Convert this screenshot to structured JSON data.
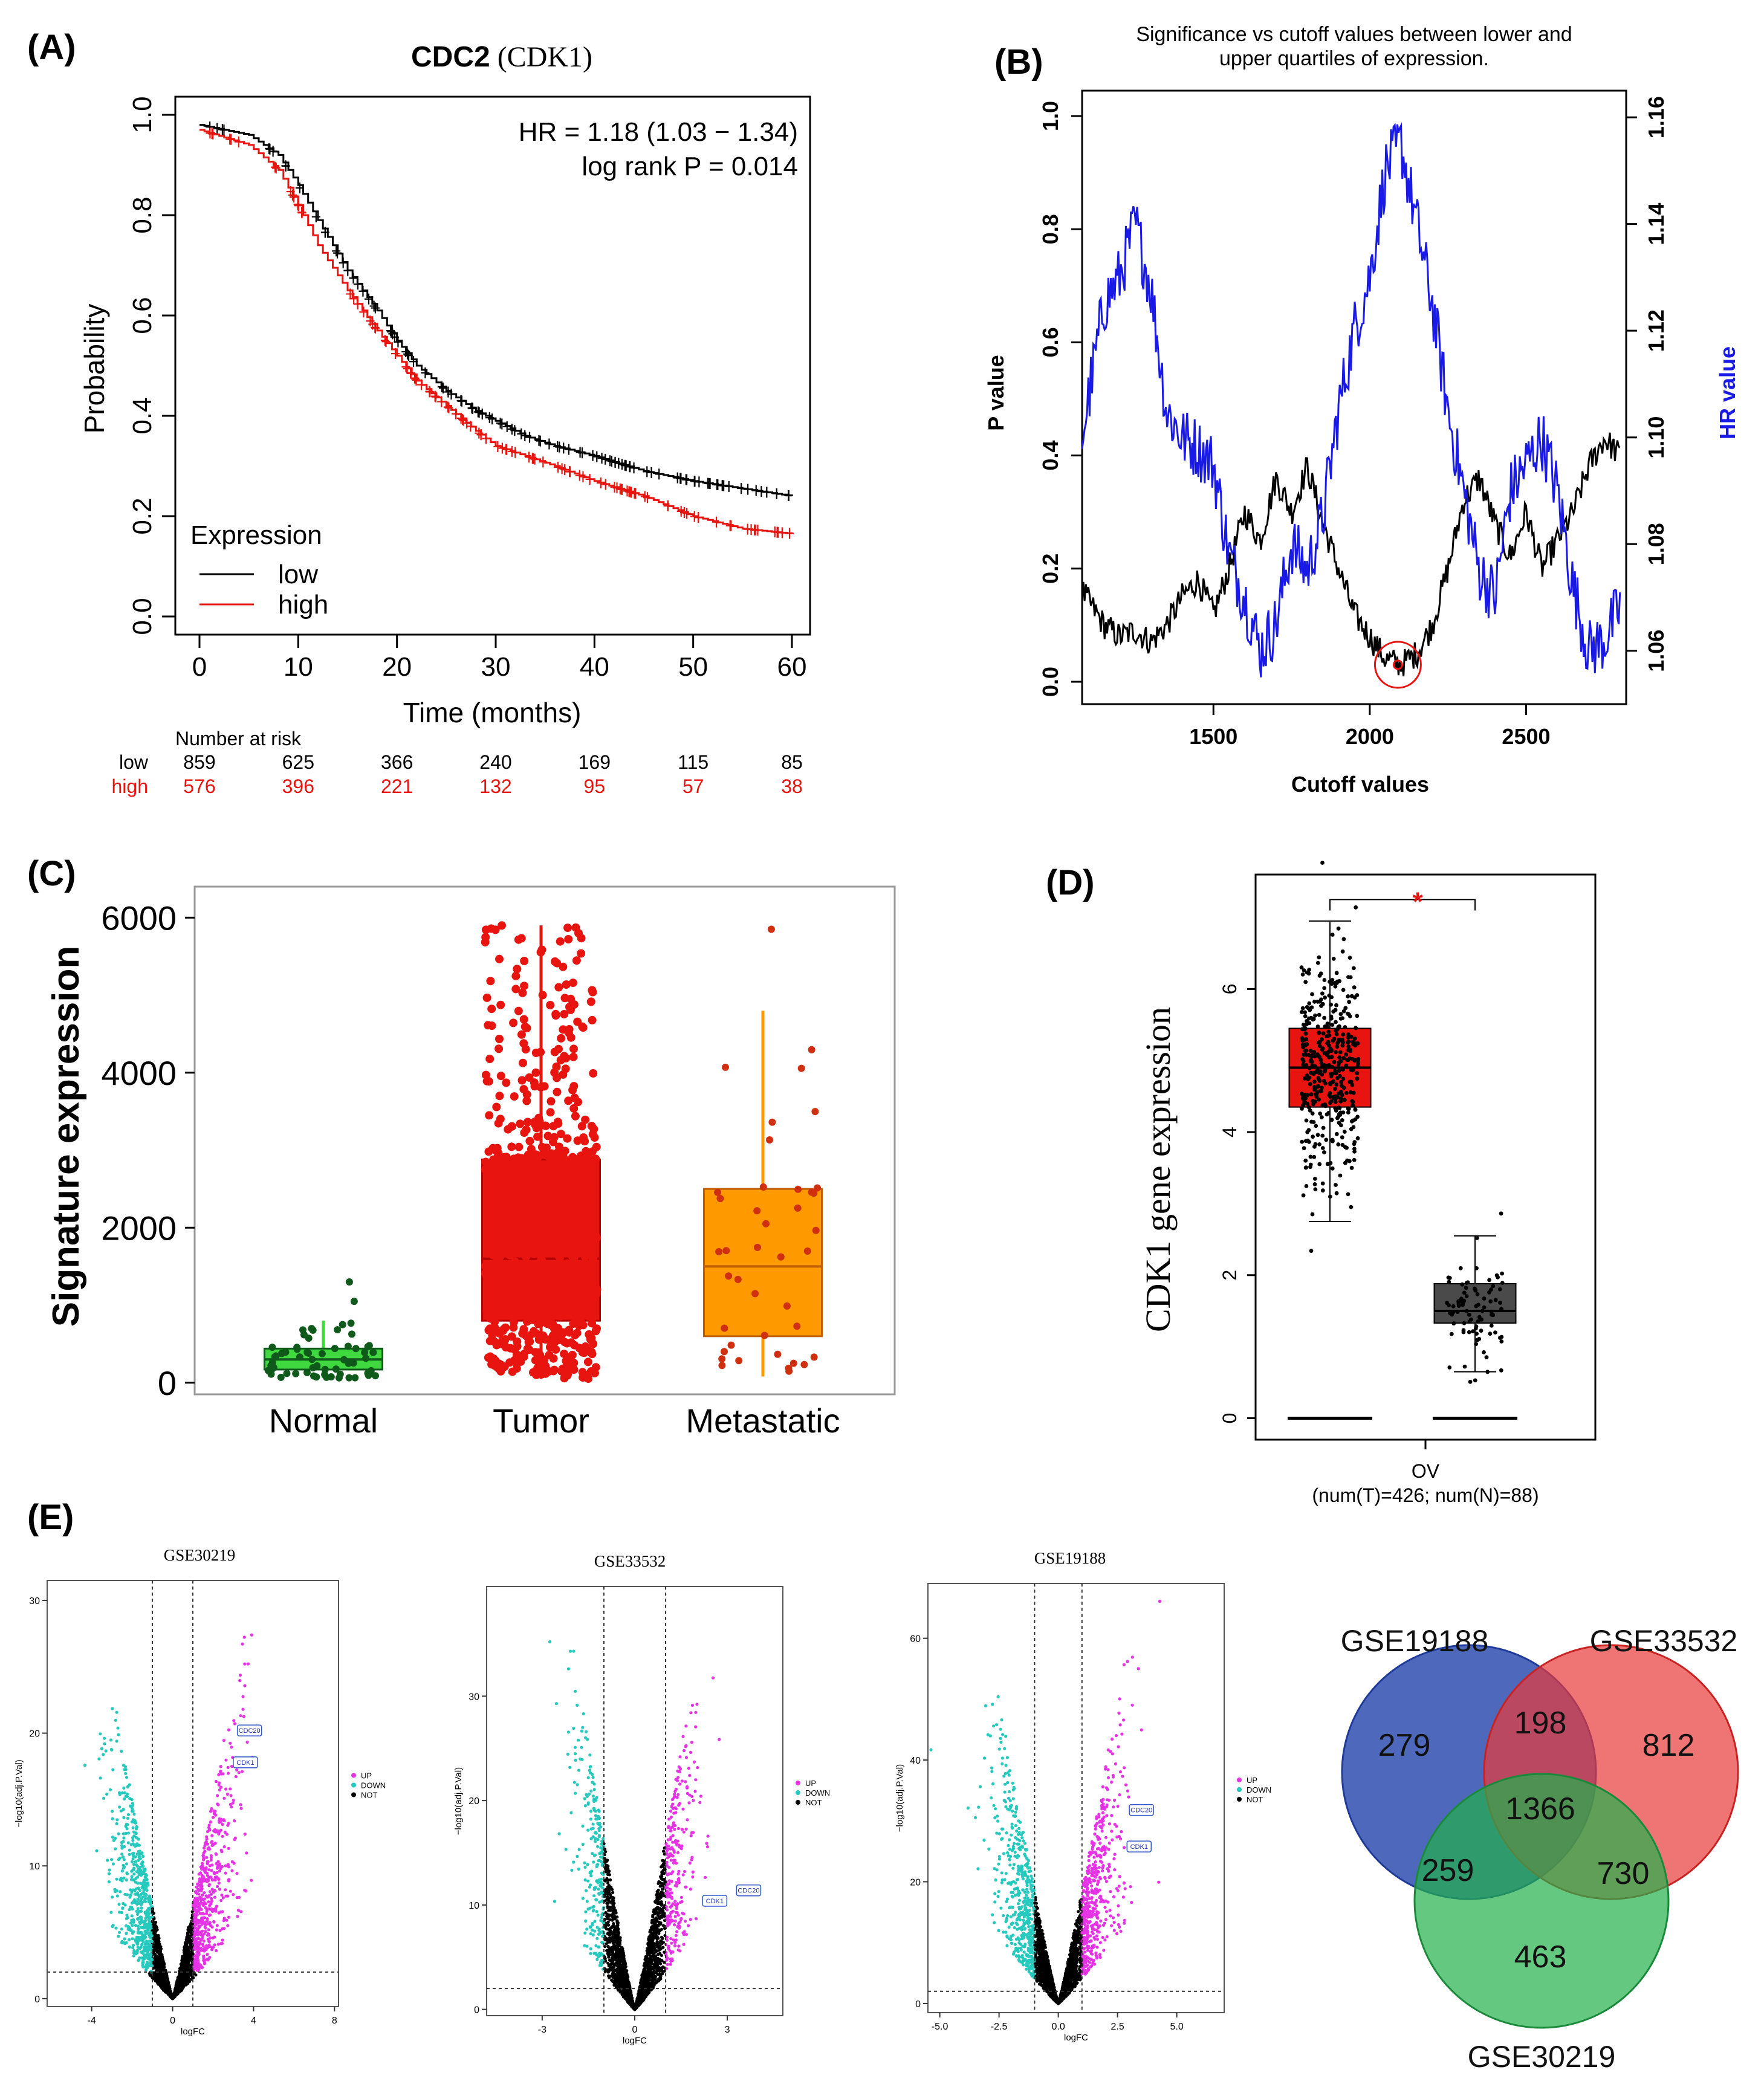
{
  "colors": {
    "black": "#000000",
    "red": "#e8140f",
    "blue": "#1a1ae6",
    "green": "#3fd93f",
    "darkgreen": "#0f5a1a",
    "orange": "#ff9900",
    "cyan": "#26c9bd",
    "magenta": "#e633e6",
    "venn_blue": "#2f4fb0",
    "venn_red": "#e83a3a",
    "venn_green": "#22b14c"
  },
  "chart_data": [
    {
      "panel": "(A)",
      "type": "line",
      "title_bold": "CDC2",
      "title_rest": " (CDK1)",
      "hr_text": "HR = 1.18 (1.03 − 1.34)",
      "p_text": "log rank P = 0.014",
      "xlabel": "Time (months)",
      "ylabel": "Probability",
      "xlim": [
        0,
        60
      ],
      "ylim": [
        0,
        1
      ],
      "xticks": [
        "0",
        "10",
        "20",
        "30",
        "40",
        "50",
        "60"
      ],
      "yticks": [
        "0.0",
        "0.2",
        "0.4",
        "0.6",
        "0.8",
        "1.0"
      ],
      "legend_title": "Expression",
      "series": [
        {
          "name": "low",
          "x": [
            0,
            5,
            8,
            10,
            12,
            15,
            18,
            20,
            22,
            25,
            28,
            30,
            33,
            36,
            40,
            45,
            50,
            55,
            60
          ],
          "y": [
            0.98,
            0.96,
            0.92,
            0.86,
            0.79,
            0.69,
            0.61,
            0.55,
            0.5,
            0.45,
            0.41,
            0.39,
            0.36,
            0.34,
            0.32,
            0.29,
            0.27,
            0.255,
            0.24
          ]
        },
        {
          "name": "high",
          "x": [
            0,
            5,
            8,
            10,
            12,
            15,
            18,
            20,
            22,
            25,
            28,
            30,
            33,
            36,
            40,
            45,
            50,
            55,
            60
          ],
          "y": [
            0.97,
            0.94,
            0.89,
            0.82,
            0.74,
            0.65,
            0.57,
            0.52,
            0.47,
            0.42,
            0.37,
            0.34,
            0.32,
            0.3,
            0.27,
            0.24,
            0.2,
            0.175,
            0.165
          ]
        }
      ],
      "risk_title": "Number at risk",
      "risk_rows": [
        {
          "name": "low",
          "values": [
            "859",
            "625",
            "366",
            "240",
            "169",
            "115",
            "85"
          ]
        },
        {
          "name": "high",
          "values": [
            "576",
            "396",
            "221",
            "132",
            "95",
            "57",
            "38"
          ]
        }
      ]
    },
    {
      "panel": "(B)",
      "type": "line",
      "title_line1": "Significance vs cutoff values between lower and",
      "title_line2": "upper quartiles of expression.",
      "xlabel": "Cutoff values",
      "ylabel": "P value",
      "y2label": "HR value",
      "xlim": [
        1080,
        2820
      ],
      "ylim": [
        0,
        1
      ],
      "y2lim": [
        1.05,
        1.165
      ],
      "xticks": [
        "1500",
        "2000",
        "2500"
      ],
      "yticks": [
        "0.0",
        "0.2",
        "0.4",
        "0.6",
        "0.8",
        "1.0"
      ],
      "y2ticks": [
        "1.06",
        "1.08",
        "1.10",
        "1.12",
        "1.14",
        "1.16"
      ],
      "series": [
        {
          "name": "P value",
          "axis": "left",
          "x": [
            1080,
            1150,
            1200,
            1250,
            1300,
            1350,
            1400,
            1450,
            1500,
            1550,
            1600,
            1650,
            1700,
            1750,
            1800,
            1850,
            1900,
            1950,
            2000,
            2050,
            2100,
            2150,
            2200,
            2250,
            2300,
            2350,
            2400,
            2450,
            2500,
            2550,
            2600,
            2650,
            2700,
            2750,
            2800
          ],
          "y": [
            0.16,
            0.1,
            0.08,
            0.09,
            0.07,
            0.1,
            0.15,
            0.18,
            0.12,
            0.2,
            0.3,
            0.25,
            0.36,
            0.3,
            0.38,
            0.28,
            0.2,
            0.12,
            0.08,
            0.04,
            0.03,
            0.05,
            0.1,
            0.2,
            0.32,
            0.36,
            0.28,
            0.22,
            0.3,
            0.2,
            0.25,
            0.3,
            0.38,
            0.43,
            0.4
          ]
        },
        {
          "name": "HR value",
          "axis": "right",
          "x": [
            1080,
            1150,
            1200,
            1250,
            1300,
            1350,
            1400,
            1450,
            1500,
            1550,
            1600,
            1650,
            1700,
            1750,
            1800,
            1850,
            1900,
            1950,
            2000,
            2050,
            2100,
            2150,
            2200,
            2250,
            2300,
            2350,
            2400,
            2450,
            2500,
            2550,
            2600,
            2650,
            2700,
            2750,
            2800
          ],
          "y": [
            1.1,
            1.125,
            1.13,
            1.14,
            1.128,
            1.105,
            1.1,
            1.098,
            1.095,
            1.078,
            1.07,
            1.06,
            1.065,
            1.08,
            1.075,
            1.085,
            1.105,
            1.12,
            1.13,
            1.15,
            1.155,
            1.14,
            1.125,
            1.105,
            1.09,
            1.075,
            1.07,
            1.09,
            1.095,
            1.1,
            1.09,
            1.072,
            1.06,
            1.062,
            1.068
          ]
        }
      ],
      "marker": {
        "x": 2090,
        "y": 0.03
      }
    },
    {
      "panel": "(C)",
      "type": "box",
      "ylabel": "Signature expression",
      "ylim": [
        -150,
        6400
      ],
      "yticks": [
        "0",
        "2000",
        "4000",
        "6000"
      ],
      "ytick_values": [
        0,
        2000,
        4000,
        6000
      ],
      "categories": [
        "Normal",
        "Tumor",
        "Metastatic"
      ],
      "boxes": [
        {
          "name": "Normal",
          "min": 60,
          "q1": 170,
          "median": 300,
          "q3": 440,
          "max": 800,
          "n": 60,
          "outliers": [
            1050,
            1300
          ]
        },
        {
          "name": "Tumor",
          "min": 50,
          "q1": 800,
          "median": 1600,
          "q3": 2880,
          "max": 5900,
          "n": 700,
          "outliers": []
        },
        {
          "name": "Metastatic",
          "min": 80,
          "q1": 600,
          "median": 1500,
          "q3": 2500,
          "max": 4800,
          "n": 40,
          "outliers": [
            5850
          ]
        }
      ]
    },
    {
      "panel": "(D)",
      "type": "box",
      "ylabel": "CDK1 gene expression",
      "ylim": [
        -0.3,
        7.6
      ],
      "yticks": [
        "0",
        "2",
        "4",
        "6"
      ],
      "ytick_values": [
        0,
        2,
        4,
        6
      ],
      "significance": "*",
      "category": "OV",
      "subtitle": "(num(T)=426; num(N)=88)",
      "boxes": [
        {
          "name": "Tumor",
          "min": 2.75,
          "q1": 4.35,
          "median": 4.9,
          "q3": 5.45,
          "max": 6.95,
          "n": 426
        },
        {
          "name": "Normal",
          "min": 0.65,
          "q1": 1.33,
          "median": 1.5,
          "q3": 1.88,
          "max": 2.55,
          "n": 88
        }
      ]
    },
    {
      "panel": "(E)",
      "type": "scatter",
      "volcanoes": [
        {
          "title": "GSE30219",
          "xlabel": "logFC",
          "ylabel": "−log10(adj.P.Val)",
          "xlim": [
            -6.2,
            8.2
          ],
          "ylim": [
            -0.6,
            31.5
          ],
          "xticks": [
            "-4",
            "0",
            "4",
            "8"
          ],
          "xtick_values": [
            -4,
            0,
            4,
            8
          ],
          "yticks": [
            "0",
            "10",
            "20",
            "30"
          ],
          "ytick_values": [
            0,
            10,
            20,
            30
          ],
          "fc_cut": 1,
          "p_cut": 2,
          "labels": [
            "CDC20",
            "CDK1"
          ],
          "label_pts": [
            [
              3.2,
              20.2
            ],
            [
              3.0,
              17.8
            ]
          ]
        },
        {
          "title": "GSE33532",
          "xlabel": "logFC",
          "ylabel": "−log10(adj.P.Val)",
          "xlim": [
            -4.8,
            4.8
          ],
          "ylim": [
            -0.6,
            40.5
          ],
          "xticks": [
            "-3",
            "0",
            "3"
          ],
          "xtick_values": [
            -3,
            0,
            3
          ],
          "yticks": [
            "0",
            "10",
            "20",
            "30"
          ],
          "ytick_values": [
            0,
            10,
            20,
            30
          ],
          "fc_cut": 1,
          "p_cut": 2,
          "labels": [
            "CDC20",
            "CDK1"
          ],
          "label_pts": [
            [
              3.3,
              11.4
            ],
            [
              2.2,
              10.4
            ]
          ]
        },
        {
          "title": "GSE19188",
          "xlabel": "logFC",
          "ylabel": "−log10(adj.P.Val)",
          "xlim": [
            -5.5,
            7.0
          ],
          "ylim": [
            -1.5,
            69
          ],
          "xticks": [
            "-5.0",
            "-2.5",
            "0.0",
            "2.5",
            "5.0"
          ],
          "xtick_values": [
            -5,
            -2.5,
            0,
            2.5,
            5
          ],
          "yticks": [
            "0",
            "20",
            "40",
            "60"
          ],
          "ytick_values": [
            0,
            20,
            40,
            60
          ],
          "fc_cut": 1,
          "p_cut": 2,
          "labels": [
            "CDC20",
            "CDK1"
          ],
          "label_pts": [
            [
              3.0,
              31.8
            ],
            [
              2.9,
              25.8
            ]
          ]
        }
      ],
      "legend": [
        "UP",
        "DOWN",
        "NOT"
      ]
    },
    {
      "panel": "(E) Venn",
      "type": "venn",
      "sets": [
        "GSE19188",
        "GSE33532",
        "GSE30219"
      ],
      "regions": {
        "a_only": "279",
        "b_only": "812",
        "c_only": "463",
        "ab": "198",
        "ac": "259",
        "bc": "730",
        "abc": "1366"
      }
    }
  ]
}
